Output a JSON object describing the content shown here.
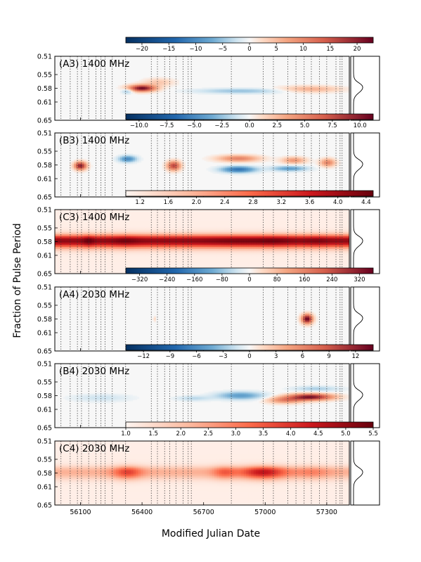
{
  "figure": {
    "ylabel": "Fraction of Pulse Period",
    "xlabel": "Modified Julian Date"
  },
  "chart_data": [
    {
      "type": "heatmap",
      "title": "(A3) 1400 MHz",
      "colormap": "diverging",
      "colorbar_range": [
        -23,
        23
      ],
      "colorbar_ticks": [
        "−20",
        "−15",
        "−10",
        "−5",
        "0",
        "5",
        "10",
        "15",
        "20"
      ],
      "colorbar_tick_values": [
        -20,
        -15,
        -10,
        -5,
        0,
        5,
        10,
        15,
        20
      ],
      "yticks": [
        "0.51",
        "0.55",
        "0.58",
        "0.61",
        "0.65"
      ],
      "ytick_values": [
        0.51,
        0.55,
        0.58,
        0.61,
        0.65
      ],
      "xticks": [],
      "features": [
        {
          "mjd": 56400,
          "phase": 0.58,
          "value": 22,
          "sx": 45,
          "sy": 0.005
        },
        {
          "mjd": 56330,
          "phase": 0.586,
          "value": -6,
          "sx": 20,
          "sy": 0.004
        },
        {
          "mjd": 56880,
          "phase": 0.586,
          "value": -5,
          "sx": 150,
          "sy": 0.004
        },
        {
          "mjd": 57220,
          "phase": 0.582,
          "value": 6,
          "sx": 100,
          "sy": 0.005
        },
        {
          "mjd": 56480,
          "phase": 0.567,
          "value": 4,
          "sx": 50,
          "sy": 0.006
        }
      ]
    },
    {
      "type": "heatmap",
      "title": "(B3) 1400 MHz",
      "colormap": "diverging",
      "colorbar_range": [
        -11.2,
        11.2
      ],
      "colorbar_ticks": [
        "−10.0",
        "−7.5",
        "−5.0",
        "−2.5",
        "0.0",
        "2.5",
        "5.0",
        "7.5",
        "10.0"
      ],
      "colorbar_tick_values": [
        -10,
        -7.5,
        -5,
        -2.5,
        0,
        2.5,
        5,
        7.5,
        10
      ],
      "yticks": [
        "0.51",
        "0.55",
        "0.58",
        "0.61",
        "0.65"
      ],
      "ytick_values": [
        0.51,
        0.55,
        0.58,
        0.61,
        0.65
      ],
      "xticks": [],
      "features": [
        {
          "mjd": 56100,
          "phase": 0.582,
          "value": 10,
          "sx": 20,
          "sy": 0.006
        },
        {
          "mjd": 56555,
          "phase": 0.582,
          "value": 8,
          "sx": 22,
          "sy": 0.007
        },
        {
          "mjd": 56330,
          "phase": 0.567,
          "value": -5,
          "sx": 30,
          "sy": 0.005
        },
        {
          "mjd": 56870,
          "phase": 0.59,
          "value": -6,
          "sx": 60,
          "sy": 0.005
        },
        {
          "mjd": 56870,
          "phase": 0.566,
          "value": 5,
          "sx": 70,
          "sy": 0.005
        },
        {
          "mjd": 57140,
          "phase": 0.57,
          "value": 4,
          "sx": 40,
          "sy": 0.005
        },
        {
          "mjd": 57120,
          "phase": 0.588,
          "value": -4,
          "sx": 60,
          "sy": 0.004
        },
        {
          "mjd": 57305,
          "phase": 0.575,
          "value": 5,
          "sx": 25,
          "sy": 0.006
        }
      ]
    },
    {
      "type": "heatmap",
      "title": "(C3) 1400 MHz",
      "colormap": "sequential-red",
      "colorbar_range": [
        1.0,
        4.5
      ],
      "colorbar_ticks": [
        "1.2",
        "1.6",
        "2.0",
        "2.4",
        "2.8",
        "3.2",
        "3.6",
        "4.0",
        "4.4"
      ],
      "colorbar_tick_values": [
        1.2,
        1.6,
        2.0,
        2.4,
        2.8,
        3.2,
        3.6,
        4.0,
        4.4
      ],
      "yticks": [
        "0.51",
        "0.55",
        "0.58",
        "0.61",
        "0.65"
      ],
      "ytick_values": [
        0.51,
        0.55,
        0.58,
        0.61,
        0.65
      ],
      "xticks": [],
      "features": []
    },
    {
      "type": "heatmap",
      "title": "(A4) 2030 MHz",
      "colormap": "diverging",
      "colorbar_range": [
        -360,
        360
      ],
      "colorbar_ticks": [
        "−320",
        "−240",
        "−160",
        "−80",
        "0",
        "80",
        "160",
        "240",
        "320"
      ],
      "colorbar_tick_values": [
        -320,
        -240,
        -160,
        -80,
        0,
        80,
        160,
        240,
        320
      ],
      "yticks": [
        "0.51",
        "0.55",
        "0.58",
        "0.61",
        "0.65"
      ],
      "ytick_values": [
        0.51,
        0.55,
        0.58,
        0.61,
        0.65
      ],
      "xticks": [],
      "features": [
        {
          "mjd": 57205,
          "phase": 0.58,
          "value": 360,
          "sx": 18,
          "sy": 0.007
        },
        {
          "mjd": 56460,
          "phase": 0.58,
          "value": 35,
          "sx": 5,
          "sy": 0.004
        }
      ]
    },
    {
      "type": "heatmap",
      "title": "(B4) 2030 MHz",
      "colormap": "diverging",
      "colorbar_range": [
        -14,
        14
      ],
      "colorbar_ticks": [
        "−12",
        "−9",
        "−6",
        "−3",
        "0",
        "3",
        "6",
        "9",
        "12"
      ],
      "colorbar_tick_values": [
        -12,
        -9,
        -6,
        -3,
        0,
        3,
        6,
        9,
        12
      ],
      "yticks": [
        "0.51",
        "0.55",
        "0.58",
        "0.61",
        "0.65"
      ],
      "ytick_values": [
        0.51,
        0.55,
        0.58,
        0.61,
        0.65
      ],
      "xticks": [],
      "features": [
        {
          "mjd": 57220,
          "phase": 0.583,
          "value": 13,
          "sx": 75,
          "sy": 0.005
        },
        {
          "mjd": 57100,
          "phase": 0.59,
          "value": 6,
          "sx": 60,
          "sy": 0.005
        },
        {
          "mjd": 56880,
          "phase": 0.58,
          "value": -5,
          "sx": 80,
          "sy": 0.006
        },
        {
          "mjd": 57250,
          "phase": 0.565,
          "value": -2.5,
          "sx": 80,
          "sy": 0.004
        },
        {
          "mjd": 56650,
          "phase": 0.586,
          "value": -2,
          "sx": 60,
          "sy": 0.004
        },
        {
          "mjd": 56200,
          "phase": 0.585,
          "value": -1.5,
          "sx": 100,
          "sy": 0.006
        }
      ]
    },
    {
      "type": "heatmap",
      "title": "(C4) 2030 MHz",
      "colormap": "sequential-red",
      "colorbar_range": [
        1.0,
        5.5
      ],
      "colorbar_ticks": [
        "1.0",
        "1.5",
        "2.0",
        "2.5",
        "3.0",
        "3.5",
        "4.0",
        "4.5",
        "5.0",
        "5.5"
      ],
      "colorbar_tick_values": [
        1.0,
        1.5,
        2.0,
        2.5,
        3.0,
        3.5,
        4.0,
        4.5,
        5.0,
        5.5
      ],
      "yticks": [
        "0.51",
        "0.55",
        "0.58",
        "0.61",
        "0.65"
      ],
      "ytick_values": [
        0.51,
        0.55,
        0.58,
        0.61,
        0.65
      ],
      "xticks": [
        "56100",
        "56400",
        "56700",
        "57000",
        "57300"
      ],
      "xtick_values": [
        56100,
        56400,
        56700,
        57000,
        57300
      ],
      "features": []
    }
  ],
  "shared": {
    "xlim": [
      55975,
      57410
    ],
    "ylim": [
      0.51,
      0.65
    ],
    "observation_mjds": [
      56005,
      56050,
      56085,
      56105,
      56140,
      56175,
      56200,
      56220,
      56255,
      56320,
      56445,
      56475,
      56510,
      56535,
      56565,
      56600,
      56625,
      56640,
      56835,
      56990,
      57040,
      57110,
      57150,
      57190,
      57225,
      57265,
      57300,
      57345,
      57365,
      57375
    ]
  }
}
